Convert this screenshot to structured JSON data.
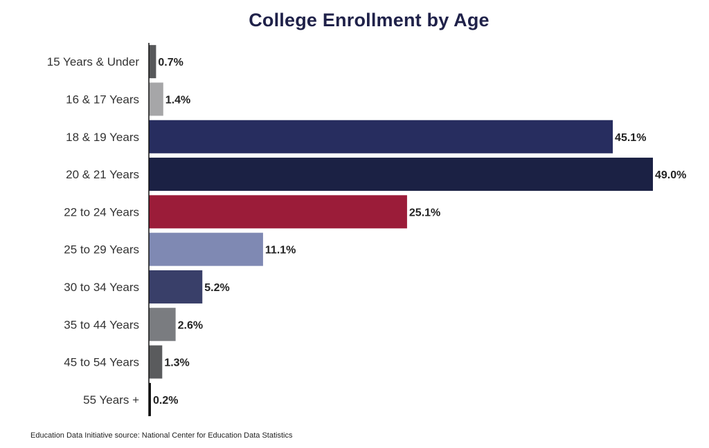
{
  "chart_data": {
    "type": "bar",
    "orientation": "horizontal",
    "title": "College Enrollment by Age",
    "xlabel": "",
    "ylabel": "",
    "grid": false,
    "legend": "none",
    "categories": [
      "15 Years & Under",
      "16 & 17 Years",
      "18 & 19 Years",
      "20 & 21 Years",
      "22 to 24 Years",
      "25 to 29 Years",
      "30 to 34 Years",
      "35 to 44 Years",
      "45 to 54 Years",
      "55 Years +"
    ],
    "values": [
      0.7,
      1.4,
      45.1,
      49.0,
      25.1,
      11.1,
      5.2,
      2.6,
      1.3,
      0.2
    ],
    "data_labels": [
      "0.7%",
      "1.4%",
      "45.1%",
      "49.0%",
      "25.1%",
      "11.1%",
      "5.2%",
      "2.6%",
      "1.3%",
      "0.2%"
    ],
    "colors": [
      "#57585a",
      "#a6a6a8",
      "#272d5f",
      "#1b2144",
      "#9b1c39",
      "#7f89b3",
      "#393f69",
      "#7a7c80",
      "#5a5b5d",
      "#111111"
    ],
    "xlim": [
      0,
      49.0
    ]
  },
  "footer": {
    "source": "Education Data Initiative source: National Center for Education Data Statistics"
  }
}
